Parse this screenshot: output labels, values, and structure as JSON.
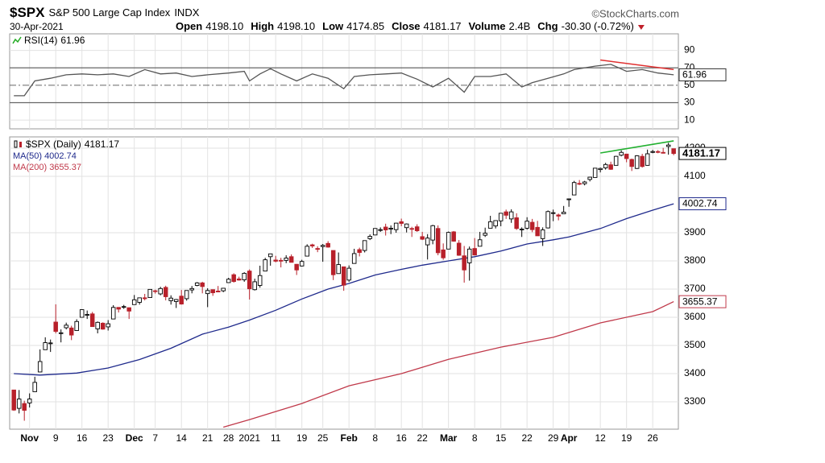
{
  "header": {
    "symbol": "$SPX",
    "name": "S&P 500 Large Cap Index",
    "exchange": "INDX",
    "source": "©StockCharts.com",
    "date": "30-Apr-2021",
    "stats": [
      {
        "label": "Open",
        "value": "4198.10"
      },
      {
        "label": "High",
        "value": "4198.10"
      },
      {
        "label": "Low",
        "value": "4174.85"
      },
      {
        "label": "Close",
        "value": "4181.17"
      },
      {
        "label": "Volume",
        "value": "2.4B"
      },
      {
        "label": "Chg",
        "value": "-30.30 (-0.72%)"
      }
    ]
  },
  "chart_data": [
    {
      "type": "line",
      "label": "RSI(14)",
      "last_value": 61.96,
      "xlim": [
        -0.8,
        126.9
      ],
      "ylim": [
        0,
        109
      ],
      "yticks": [
        90,
        70,
        50,
        30,
        10
      ],
      "levels": [
        70,
        50,
        30
      ],
      "series": [
        {
          "color": "#555555",
          "x": [
            0,
            2,
            4,
            7,
            10,
            13,
            16,
            19,
            22,
            25,
            28,
            31,
            34,
            37,
            41,
            44,
            45,
            47,
            49,
            51,
            54,
            57,
            60,
            63,
            65,
            68,
            71,
            74,
            77,
            80,
            83,
            86,
            88,
            91,
            94,
            97,
            99,
            102,
            105,
            107,
            111,
            114,
            117,
            120,
            123,
            126
          ],
          "values": [
            38,
            38,
            55,
            58,
            62,
            63,
            62,
            63,
            60,
            68,
            63,
            64,
            60,
            62,
            64,
            66,
            55,
            63,
            69,
            63,
            55,
            63,
            58,
            46,
            60,
            62,
            63,
            64,
            57,
            48,
            58,
            42,
            60,
            60,
            63,
            48,
            53,
            58,
            63,
            68,
            72,
            74,
            66,
            68,
            64,
            61.96
          ]
        }
      ],
      "trendline": {
        "color": "#e03030",
        "x": [
          112,
          126
        ],
        "values": [
          79,
          68
        ]
      }
    },
    {
      "type": "candlestick",
      "label": "$SPX (Daily)",
      "last_value": 4181.17,
      "xlim": [
        -0.8,
        126.9
      ],
      "ylim": [
        3203,
        4240
      ],
      "yticks": [
        4200,
        4100,
        3900,
        3800,
        3700,
        3600,
        3500,
        3400,
        3300
      ],
      "xticks": [
        {
          "value": 3,
          "label": "Nov"
        },
        {
          "value": 8,
          "label": "9"
        },
        {
          "value": 13,
          "label": "16"
        },
        {
          "value": 18,
          "label": "23"
        },
        {
          "value": 23,
          "label": "Dec"
        },
        {
          "value": 27,
          "label": "7"
        },
        {
          "value": 32,
          "label": "14"
        },
        {
          "value": 37,
          "label": "21"
        },
        {
          "value": 41,
          "label": "28"
        },
        {
          "value": 45,
          "label": "2021"
        },
        {
          "value": 50,
          "label": "11"
        },
        {
          "value": 55,
          "label": "19"
        },
        {
          "value": 59,
          "label": "25"
        },
        {
          "value": 64,
          "label": "Feb"
        },
        {
          "value": 69,
          "label": "8"
        },
        {
          "value": 74,
          "label": "16"
        },
        {
          "value": 78,
          "label": "22"
        },
        {
          "value": 83,
          "label": "Mar"
        },
        {
          "value": 88,
          "label": "8"
        },
        {
          "value": 93,
          "label": "15"
        },
        {
          "value": 98,
          "label": "22"
        },
        {
          "value": 103,
          "label": "29"
        },
        {
          "value": 106,
          "label": "Apr"
        },
        {
          "value": 112,
          "label": "12"
        },
        {
          "value": 117,
          "label": "19"
        },
        {
          "value": 122,
          "label": "26"
        }
      ],
      "up_color": "#000000",
      "down_color": "#b8202a",
      "ohlc": [
        [
          3342,
          3342,
          3268,
          3271
        ],
        [
          3277,
          3342,
          3259,
          3310
        ],
        [
          3294,
          3304,
          3233,
          3270
        ],
        [
          3296,
          3330,
          3280,
          3310
        ],
        [
          3336,
          3389,
          3336,
          3369
        ],
        [
          3406,
          3486,
          3405,
          3443
        ],
        [
          3485,
          3529,
          3485,
          3510
        ],
        [
          3508,
          3521,
          3477,
          3509
        ],
        [
          3583,
          3646,
          3543,
          3550
        ],
        [
          3543,
          3557,
          3511,
          3545
        ],
        [
          3563,
          3581,
          3557,
          3572
        ],
        [
          3562,
          3570,
          3519,
          3537
        ],
        [
          3553,
          3593,
          3552,
          3585
        ],
        [
          3600,
          3628,
          3600,
          3627
        ],
        [
          3610,
          3624,
          3594,
          3610
        ],
        [
          3612,
          3619,
          3567,
          3567
        ],
        [
          3559,
          3585,
          3543,
          3582
        ],
        [
          3579,
          3582,
          3556,
          3558
        ],
        [
          3566,
          3590,
          3553,
          3577
        ],
        [
          3594,
          3643,
          3594,
          3635
        ],
        [
          3635,
          3636,
          3617,
          3629
        ],
        [
          3638,
          3644,
          3630,
          3638
        ],
        [
          3634,
          3634,
          3594,
          3622
        ],
        [
          3645,
          3679,
          3645,
          3662
        ],
        [
          3653,
          3670,
          3645,
          3669
        ],
        [
          3669,
          3683,
          3660,
          3666
        ],
        [
          3670,
          3699,
          3670,
          3699
        ],
        [
          3694,
          3698,
          3684,
          3692
        ],
        [
          3683,
          3708,
          3678,
          3702
        ],
        [
          3706,
          3712,
          3660,
          3673
        ],
        [
          3659,
          3678,
          3645,
          3668
        ],
        [
          3656,
          3665,
          3633,
          3663
        ],
        [
          3675,
          3697,
          3645,
          3647
        ],
        [
          3666,
          3695,
          3659,
          3695
        ],
        [
          3697,
          3711,
          3685,
          3702
        ],
        [
          3713,
          3725,
          3710,
          3722
        ],
        [
          3722,
          3726,
          3685,
          3709
        ],
        [
          3684,
          3703,
          3636,
          3695
        ],
        [
          3698,
          3698,
          3676,
          3687
        ],
        [
          3693,
          3711,
          3689,
          3690
        ],
        [
          3694,
          3704,
          3689,
          3703
        ],
        [
          3723,
          3740,
          3723,
          3735
        ],
        [
          3751,
          3756,
          3723,
          3727
        ],
        [
          3736,
          3744,
          3730,
          3732
        ],
        [
          3733,
          3760,
          3726,
          3756
        ],
        [
          3764,
          3770,
          3663,
          3701
        ],
        [
          3698,
          3737,
          3695,
          3726
        ],
        [
          3713,
          3783,
          3705,
          3748
        ],
        [
          3764,
          3811,
          3764,
          3804
        ],
        [
          3815,
          3826,
          3783,
          3825
        ],
        [
          3803,
          3818,
          3795,
          3799
        ],
        [
          3802,
          3811,
          3777,
          3801
        ],
        [
          3802,
          3820,
          3792,
          3810
        ],
        [
          3815,
          3823,
          3795,
          3795
        ],
        [
          3788,
          3789,
          3750,
          3768
        ],
        [
          3782,
          3804,
          3780,
          3798
        ],
        [
          3817,
          3859,
          3817,
          3852
        ],
        [
          3857,
          3861,
          3846,
          3853
        ],
        [
          3844,
          3852,
          3831,
          3841
        ],
        [
          3851,
          3860,
          3797,
          3855
        ],
        [
          3862,
          3870,
          3847,
          3849
        ],
        [
          3837,
          3837,
          3732,
          3751
        ],
        [
          3755,
          3830,
          3755,
          3787
        ],
        [
          3779,
          3779,
          3694,
          3714
        ],
        [
          3732,
          3784,
          3726,
          3774
        ],
        [
          3791,
          3843,
          3791,
          3826
        ],
        [
          3840,
          3847,
          3816,
          3830
        ],
        [
          3837,
          3872,
          3830,
          3872
        ],
        [
          3879,
          3894,
          3874,
          3887
        ],
        [
          3892,
          3916,
          3892,
          3915
        ],
        [
          3910,
          3919,
          3903,
          3911
        ],
        [
          3920,
          3932,
          3890,
          3910
        ],
        [
          3916,
          3926,
          3895,
          3916
        ],
        [
          3911,
          3935,
          3900,
          3934
        ],
        [
          3939,
          3950,
          3923,
          3933
        ],
        [
          3918,
          3933,
          3901,
          3931
        ],
        [
          3915,
          3921,
          3885,
          3913
        ],
        [
          3921,
          3930,
          3903,
          3907
        ],
        [
          3886,
          3903,
          3874,
          3877
        ],
        [
          3857,
          3895,
          3805,
          3881
        ],
        [
          3874,
          3928,
          3859,
          3925
        ],
        [
          3915,
          3926,
          3820,
          3829
        ],
        [
          3839,
          3862,
          3804,
          3811
        ],
        [
          3842,
          3904,
          3842,
          3901
        ],
        [
          3903,
          3906,
          3868,
          3870
        ],
        [
          3863,
          3874,
          3818,
          3820
        ],
        [
          3818,
          3853,
          3723,
          3768
        ],
        [
          3793,
          3851,
          3730,
          3842
        ],
        [
          3844,
          3881,
          3819,
          3821
        ],
        [
          3852,
          3903,
          3852,
          3875
        ],
        [
          3891,
          3918,
          3885,
          3898
        ],
        [
          3916,
          3960,
          3916,
          3939
        ],
        [
          3924,
          3944,
          3915,
          3943
        ],
        [
          3942,
          3970,
          3923,
          3969
        ],
        [
          3974,
          3982,
          3949,
          3962
        ],
        [
          3949,
          3983,
          3935,
          3974
        ],
        [
          3953,
          3969,
          3910,
          3915
        ],
        [
          3913,
          3919,
          3885,
          3913
        ],
        [
          3916,
          3955,
          3911,
          3941
        ],
        [
          3937,
          3949,
          3902,
          3911
        ],
        [
          3919,
          3942,
          3889,
          3889
        ],
        [
          3879,
          3919,
          3853,
          3910
        ],
        [
          3917,
          3979,
          3915,
          3975
        ],
        [
          3970,
          3982,
          3941,
          3971
        ],
        [
          3963,
          3968,
          3944,
          3959
        ],
        [
          3967,
          3995,
          3966,
          3973
        ],
        [
          4020,
          4021,
          3992,
          4020
        ],
        [
          4034,
          4084,
          4034,
          4078
        ],
        [
          4075,
          4087,
          4069,
          4074
        ],
        [
          4074,
          4084,
          4068,
          4080
        ],
        [
          4089,
          4098,
          4082,
          4097
        ],
        [
          4096,
          4129,
          4096,
          4129
        ],
        [
          4124,
          4131,
          4114,
          4128
        ],
        [
          4130,
          4148,
          4124,
          4142
        ],
        [
          4141,
          4152,
          4123,
          4125
        ],
        [
          4139,
          4173,
          4139,
          4171
        ],
        [
          4175,
          4192,
          4171,
          4185
        ],
        [
          4179,
          4180,
          4150,
          4163
        ],
        [
          4160,
          4163,
          4119,
          4135
        ],
        [
          4128,
          4175,
          4126,
          4173
        ],
        [
          4171,
          4180,
          4131,
          4135
        ],
        [
          4139,
          4195,
          4138,
          4180
        ],
        [
          4185,
          4194,
          4182,
          4188
        ],
        [
          4188,
          4193,
          4182,
          4187
        ],
        [
          4185,
          4201,
          4181,
          4183
        ],
        [
          4206,
          4219,
          4177,
          4211
        ],
        [
          4198,
          4198,
          4175,
          4181
        ]
      ],
      "series": [
        {
          "name": "MA(50)",
          "last_value": 4002.74,
          "color": "#1f2a8c",
          "x": [
            0,
            5,
            12,
            18,
            24,
            30,
            36,
            41,
            45,
            50,
            55,
            60,
            64,
            69,
            74,
            78,
            83,
            88,
            93,
            98,
            103,
            106,
            112,
            117,
            122,
            126
          ],
          "values": [
            3400,
            3395,
            3402,
            3420,
            3450,
            3490,
            3540,
            3565,
            3590,
            3625,
            3665,
            3700,
            3720,
            3750,
            3770,
            3785,
            3800,
            3815,
            3835,
            3860,
            3875,
            3885,
            3915,
            3950,
            3980,
            4002.74
          ]
        },
        {
          "name": "MA(200)",
          "last_value": 3655.37,
          "color": "#c0394a",
          "x": [
            40,
            45,
            55,
            64,
            74,
            83,
            93,
            103,
            112,
            122,
            126
          ],
          "values": [
            3210,
            3237,
            3294,
            3357,
            3400,
            3451,
            3494,
            3529,
            3580,
            3620,
            3655.37
          ]
        }
      ],
      "trendline": {
        "color": "#22b030",
        "x": [
          112,
          126
        ],
        "values": [
          4183,
          4226
        ]
      }
    }
  ]
}
